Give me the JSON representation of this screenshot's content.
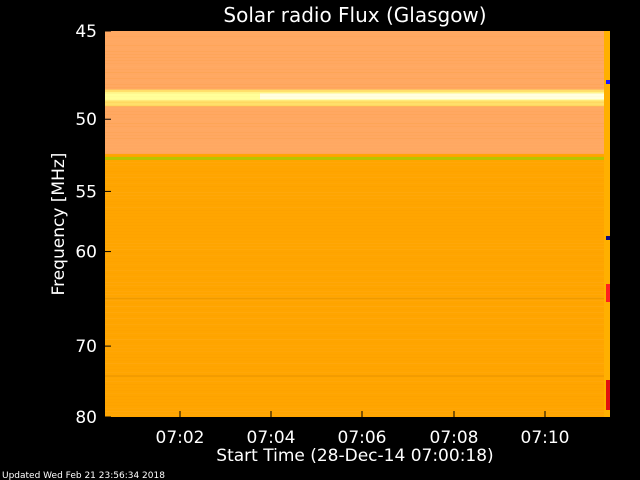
{
  "chart_data": {
    "type": "heatmap",
    "title": "Solar radio Flux (Glasgow)",
    "xlabel": "Start Time (28-Dec-14 07:00:18)",
    "ylabel": "Frequency [MHz]",
    "xlim_minutes": [
      7.0,
      7.19
    ],
    "x_ticks": [
      "07:02",
      "07:04",
      "07:06",
      "07:08",
      "07:10"
    ],
    "y_ticks": [
      "45",
      "50",
      "55",
      "60",
      "70",
      "80"
    ],
    "y_tick_values": [
      45,
      50,
      55,
      60,
      70,
      80
    ],
    "ylim": [
      45,
      80
    ],
    "colors": {
      "background_field": "#ffa500",
      "upper_band": "#ffaa55",
      "hot_line": "#ffff66",
      "bright_line": "#ffffcc",
      "green_line": "#b8c400"
    },
    "bands": [
      {
        "from": 45.0,
        "to": 48.2,
        "level": "warm"
      },
      {
        "from": 48.2,
        "to": 49.2,
        "level": "hot"
      },
      {
        "from": 49.2,
        "to": 52.3,
        "level": "warm"
      },
      {
        "from": 52.3,
        "to": 80.0,
        "level": "base"
      }
    ],
    "features": [
      {
        "freq": 48.6,
        "type": "bright-line"
      },
      {
        "freq": 52.6,
        "type": "green-line"
      },
      {
        "freq": 64.5,
        "type": "faint-line"
      },
      {
        "freq": 73.8,
        "type": "faint-line"
      }
    ]
  },
  "footer": "Updated Wed Feb 21 23:56:34 2018"
}
